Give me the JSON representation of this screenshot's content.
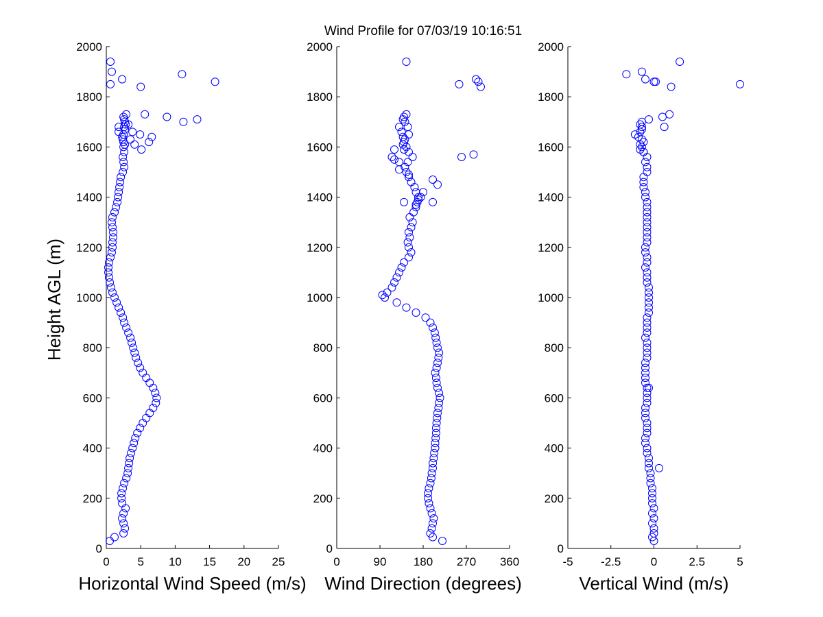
{
  "title": "Wind Profile for  07/03/19 10:16:51",
  "ylabel": "Height AGL (m)",
  "colors": {
    "marker": "#0000ff",
    "axis": "#000000",
    "background": "#ffffff"
  },
  "chart_data": [
    {
      "type": "scatter",
      "xlabel": "Horizontal Wind Speed (m/s)",
      "xlim": [
        0,
        25
      ],
      "ylim": [
        0,
        2000
      ],
      "xticks": [
        "0",
        "5",
        "10",
        "15",
        "20",
        "25"
      ],
      "yticks": [
        "0",
        "200",
        "400",
        "600",
        "800",
        "1000",
        "1200",
        "1400",
        "1600",
        "1800",
        "2000"
      ],
      "series": [
        {
          "x": [
            0.5,
            1.2,
            2.5,
            2.7,
            2.5,
            2.3,
            2.5,
            2.8,
            2.3,
            2.2,
            2.2,
            2.4,
            2.6,
            2.9,
            3.1,
            3.2,
            3.3,
            3.4,
            3.6,
            3.8,
            4.0,
            4.2,
            4.5,
            4.9,
            5.3,
            5.8,
            6.3,
            6.8,
            7.2,
            7.3,
            7.1,
            6.8,
            6.3,
            5.8,
            5.3,
            4.9,
            4.6,
            4.3,
            4.1,
            3.9,
            3.7,
            3.5,
            3.2,
            2.9,
            2.6,
            2.4,
            2.1,
            1.8,
            1.5,
            1.2,
            0.9,
            0.7,
            0.5,
            0.4,
            0.3,
            0.3,
            0.4,
            0.6,
            0.8,
            0.9,
            0.9,
            1.0,
            1.0,
            0.9,
            0.8,
            0.9,
            1.2,
            1.4,
            1.6,
            1.7,
            1.8,
            1.9,
            2.0,
            2.1,
            2.4,
            2.6,
            2.5,
            2.4,
            2.6,
            2.5,
            2.7,
            2.5,
            2.4,
            2.3,
            2.5,
            3.8,
            2.7,
            2.6,
            2.8,
            2.7,
            2.6,
            2.5,
            2.9,
            3.2,
            1.8,
            4.9,
            3.5,
            4.1,
            5.1,
            6.2,
            6.6,
            1.8,
            11.2,
            13.2,
            8.8,
            5.6,
            0.6,
            2.3,
            5.0,
            15.8,
            0.8,
            11.0,
            0.6
          ],
          "y": [
            30,
            45,
            60,
            80,
            100,
            120,
            140,
            160,
            180,
            200,
            220,
            240,
            260,
            280,
            300,
            320,
            340,
            360,
            380,
            400,
            420,
            440,
            460,
            480,
            500,
            520,
            540,
            560,
            580,
            600,
            620,
            640,
            660,
            680,
            700,
            720,
            740,
            760,
            780,
            800,
            820,
            840,
            860,
            880,
            900,
            920,
            940,
            960,
            980,
            1000,
            1020,
            1040,
            1060,
            1080,
            1100,
            1120,
            1140,
            1160,
            1180,
            1200,
            1220,
            1240,
            1260,
            1280,
            1300,
            1320,
            1340,
            1360,
            1380,
            1400,
            1420,
            1440,
            1460,
            1480,
            1500,
            1520,
            1540,
            1560,
            1580,
            1600,
            1610,
            1620,
            1630,
            1640,
            1650,
            1660,
            1670,
            1680,
            1690,
            1700,
            1710,
            1720,
            1730,
            1690,
            1680,
            1650,
            1630,
            1610,
            1590,
            1620,
            1640,
            1660,
            1700,
            1710,
            1720,
            1730,
            1850,
            1870,
            1840,
            1860,
            1900,
            1890,
            1940
          ]
        }
      ]
    },
    {
      "type": "scatter",
      "xlabel": "Wind Direction (degrees)",
      "xlim": [
        0,
        360
      ],
      "ylim": [
        0,
        2000
      ],
      "xticks": [
        "0",
        "90",
        "180",
        "270",
        "360"
      ],
      "yticks": [
        "0",
        "200",
        "400",
        "600",
        "800",
        "1000",
        "1200",
        "1400",
        "1600",
        "1800",
        "2000"
      ],
      "series": [
        {
          "x": [
            220,
            200,
            195,
            198,
            200,
            202,
            198,
            195,
            192,
            190,
            190,
            192,
            195,
            197,
            198,
            200,
            200,
            202,
            203,
            205,
            205,
            206,
            207,
            207,
            208,
            209,
            210,
            212,
            213,
            215,
            213,
            210,
            208,
            207,
            205,
            208,
            210,
            212,
            213,
            210,
            208,
            206,
            204,
            200,
            195,
            185,
            165,
            145,
            125,
            100,
            95,
            105,
            115,
            120,
            125,
            130,
            135,
            140,
            150,
            155,
            150,
            148,
            152,
            150,
            155,
            158,
            152,
            160,
            165,
            168,
            170,
            165,
            162,
            155,
            150,
            145,
            142,
            148,
            158,
            150,
            145,
            140,
            138,
            135,
            130,
            142,
            138,
            140,
            145,
            150,
            148,
            138,
            142,
            120,
            140,
            115,
            130,
            130,
            150,
            200,
            210,
            180,
            175,
            170,
            165,
            140,
            200,
            120,
            260,
            285,
            300,
            255,
            295,
            290,
            145
          ],
          "y": [
            30,
            45,
            60,
            80,
            100,
            120,
            140,
            160,
            180,
            200,
            220,
            240,
            260,
            280,
            300,
            320,
            340,
            360,
            380,
            400,
            420,
            440,
            460,
            480,
            500,
            520,
            540,
            560,
            580,
            600,
            620,
            640,
            660,
            680,
            700,
            720,
            740,
            760,
            780,
            800,
            820,
            840,
            860,
            880,
            900,
            920,
            940,
            960,
            980,
            1000,
            1010,
            1020,
            1040,
            1060,
            1080,
            1100,
            1120,
            1140,
            1160,
            1180,
            1200,
            1220,
            1240,
            1260,
            1280,
            1300,
            1320,
            1340,
            1360,
            1380,
            1400,
            1420,
            1440,
            1460,
            1480,
            1500,
            1520,
            1540,
            1560,
            1580,
            1600,
            1620,
            1640,
            1660,
            1680,
            1700,
            1710,
            1720,
            1730,
            1650,
            1680,
            1610,
            1630,
            1590,
            1590,
            1560,
            1540,
            1510,
            1490,
            1470,
            1450,
            1420,
            1400,
            1390,
            1370,
            1380,
            1380,
            1550,
            1560,
            1570,
            1840,
            1850,
            1860,
            1870,
            1940
          ]
        }
      ]
    },
    {
      "type": "scatter",
      "xlabel": "Vertical Wind (m/s)",
      "xlim": [
        -5,
        5
      ],
      "ylim": [
        0,
        2000
      ],
      "xticks": [
        "-5",
        "-2.5",
        "0",
        "2.5",
        "5"
      ],
      "yticks": [
        "0",
        "200",
        "400",
        "600",
        "800",
        "1000",
        "1200",
        "1400",
        "1600",
        "1800",
        "2000"
      ],
      "series": [
        {
          "x": [
            0.0,
            -0.1,
            0.0,
            0.0,
            -0.1,
            0.0,
            -0.1,
            0.0,
            -0.1,
            -0.1,
            -0.1,
            -0.1,
            -0.2,
            -0.2,
            -0.2,
            -0.3,
            -0.3,
            -0.3,
            -0.4,
            -0.4,
            -0.5,
            -0.5,
            -0.4,
            -0.4,
            -0.4,
            -0.5,
            -0.5,
            -0.5,
            -0.4,
            -0.4,
            -0.4,
            -0.4,
            -0.5,
            -0.5,
            -0.5,
            -0.5,
            -0.5,
            -0.4,
            -0.4,
            -0.4,
            -0.4,
            -0.5,
            -0.4,
            -0.4,
            -0.4,
            -0.4,
            -0.3,
            -0.3,
            -0.3,
            -0.3,
            -0.3,
            -0.3,
            -0.4,
            -0.4,
            -0.4,
            -0.5,
            -0.4,
            -0.4,
            -0.5,
            -0.5,
            -0.4,
            -0.4,
            -0.4,
            -0.4,
            -0.4,
            -0.4,
            -0.4,
            -0.4,
            -0.4,
            -0.5,
            -0.5,
            -0.6,
            -0.6,
            -0.6,
            -0.4,
            -0.4,
            -0.5,
            -0.4,
            -0.6,
            -0.7,
            -0.8,
            -0.6,
            -0.7,
            -0.9,
            -1.1,
            -0.8,
            -0.7,
            -0.7,
            -0.8,
            -0.7,
            0.3,
            -0.3,
            0.5,
            -0.6,
            -0.8,
            -0.3,
            0.9,
            1.0,
            0.6,
            0.1,
            -1.6,
            -0.7,
            -0.5,
            0.0,
            5.0,
            1.5
          ],
          "y": [
            30,
            45,
            60,
            80,
            100,
            120,
            140,
            160,
            180,
            200,
            220,
            240,
            260,
            280,
            300,
            320,
            340,
            360,
            380,
            400,
            420,
            440,
            460,
            480,
            500,
            520,
            540,
            560,
            580,
            600,
            620,
            640,
            660,
            680,
            700,
            720,
            740,
            760,
            780,
            800,
            820,
            840,
            860,
            880,
            900,
            920,
            940,
            960,
            980,
            1000,
            1020,
            1040,
            1060,
            1080,
            1100,
            1120,
            1140,
            1160,
            1180,
            1200,
            1220,
            1240,
            1260,
            1280,
            1300,
            1320,
            1340,
            1360,
            1380,
            1400,
            1420,
            1440,
            1460,
            1480,
            1500,
            1520,
            1540,
            1560,
            1580,
            1600,
            1610,
            1620,
            1630,
            1640,
            1650,
            1660,
            1670,
            1680,
            1690,
            1700,
            320,
            640,
            1720,
            1580,
            1590,
            1710,
            1730,
            1840,
            1680,
            1860,
            1890,
            1900,
            1870,
            1860,
            1850,
            1940
          ]
        }
      ]
    }
  ]
}
